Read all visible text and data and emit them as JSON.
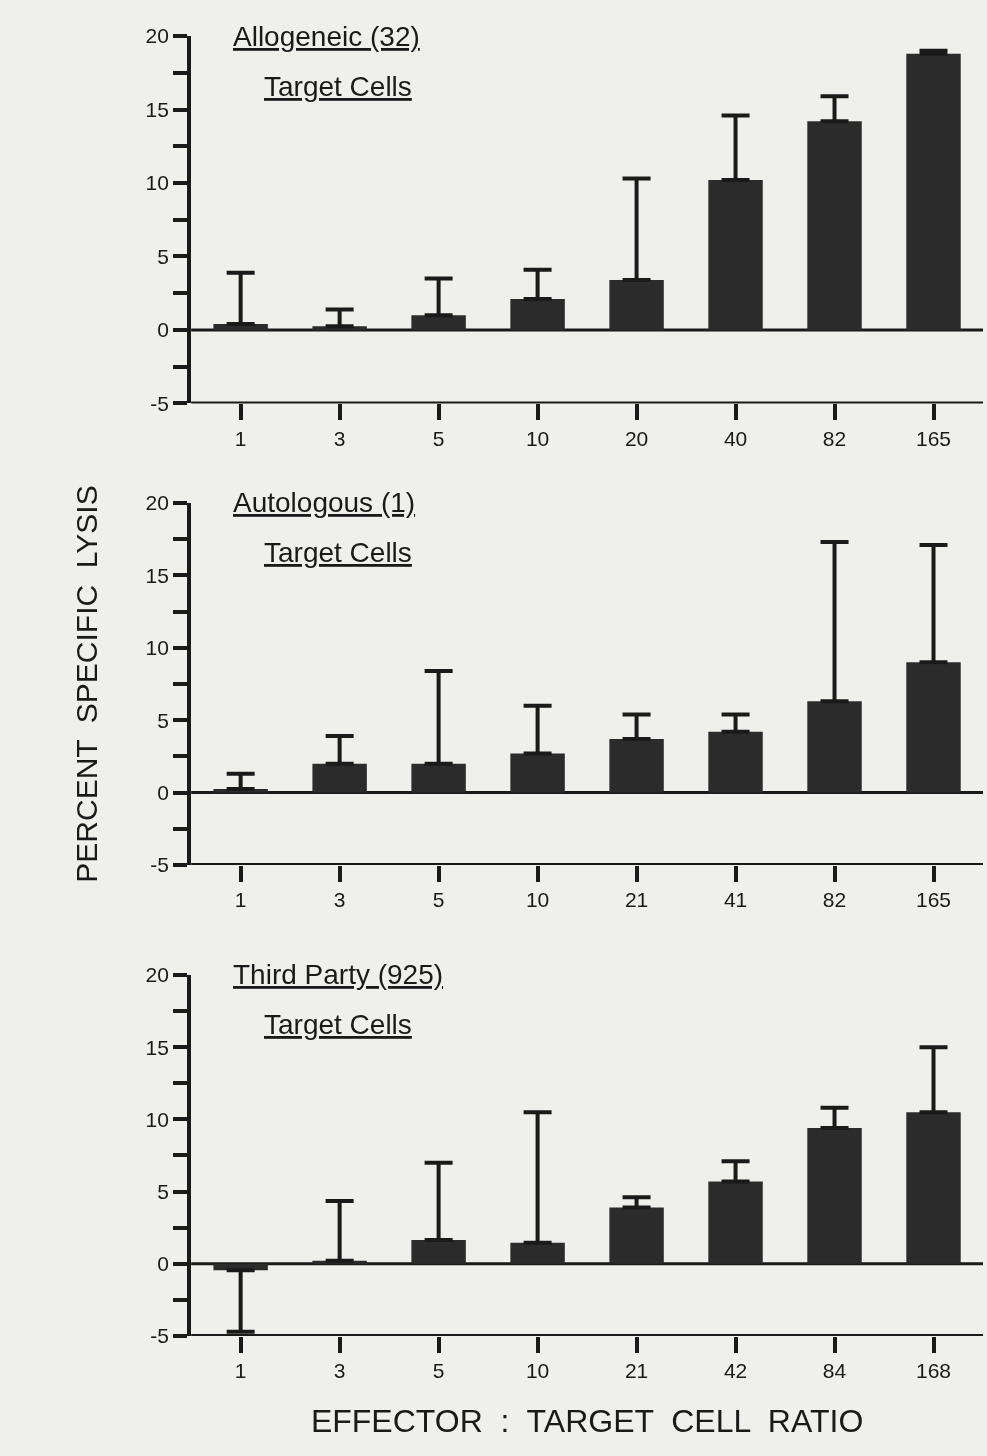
{
  "chart_data": [
    {
      "type": "bar",
      "title": "Allogeneic (32)",
      "subtitle": "Target Cells",
      "categories": [
        "1",
        "3",
        "5",
        "10",
        "20",
        "40",
        "82",
        "165"
      ],
      "values": [
        0.4,
        0.25,
        1.0,
        2.1,
        3.4,
        10.2,
        14.2,
        18.8
      ],
      "errors": [
        [
          0.4,
          3.9
        ],
        [
          0.25,
          1.4
        ],
        [
          1.0,
          3.5
        ],
        [
          2.1,
          4.1
        ],
        [
          3.4,
          10.3
        ],
        [
          10.2,
          14.6
        ],
        [
          14.2,
          15.9
        ],
        [
          18.8,
          19.0
        ]
      ],
      "ref_lines": [
        {
          "axis": "y",
          "value": 0,
          "color": "#1a1a1a"
        }
      ],
      "color": "#2b2b2b",
      "ylim": [
        -5,
        20
      ],
      "yticks": [
        -5,
        {
          "value": -2.5,
          "label": null
        },
        0,
        {
          "value": 2.5,
          "label": null
        },
        5,
        {
          "value": 7.5,
          "label": null
        },
        10,
        {
          "value": 12.5,
          "label": null
        },
        15,
        {
          "value": 17.5,
          "label": null
        },
        20
      ],
      "grid": false
    },
    {
      "type": "bar",
      "title": "Autologous (1)",
      "subtitle": "Target Cells",
      "ylabel": "PERCENT  SPECIFIC  LYSIS",
      "categories": [
        "1",
        "3",
        "5",
        "10",
        "21",
        "41",
        "82",
        "165"
      ],
      "values": [
        0.25,
        2.0,
        2.0,
        2.7,
        3.7,
        4.2,
        6.3,
        9.0
      ],
      "errors": [
        [
          0.25,
          1.3
        ],
        [
          2.0,
          3.9
        ],
        [
          2.0,
          8.4
        ],
        [
          2.7,
          6.0
        ],
        [
          3.7,
          5.4
        ],
        [
          4.2,
          5.4
        ],
        [
          6.3,
          17.3
        ],
        [
          9.0,
          17.1
        ]
      ],
      "ref_lines": [
        {
          "axis": "y",
          "value": 0,
          "color": "#1a1a1a"
        }
      ],
      "color": "#2b2b2b",
      "ylim": [
        -5,
        20
      ],
      "yticks": [
        -5,
        {
          "value": -2.5,
          "label": null
        },
        0,
        {
          "value": 2.5,
          "label": null
        },
        5,
        {
          "value": 7.5,
          "label": null
        },
        10,
        {
          "value": 12.5,
          "label": null
        },
        15,
        {
          "value": 17.5,
          "label": null
        },
        20
      ],
      "grid": false
    },
    {
      "type": "bar",
      "title": "Third Party (925)",
      "subtitle": "Target Cells",
      "xlabel": "EFFECTOR  :  TARGET  CELL  RATIO",
      "categories": [
        "1",
        "3",
        "5",
        "10",
        "21",
        "42",
        "84",
        "168"
      ],
      "values": [
        -0.45,
        0.2,
        1.65,
        1.45,
        3.9,
        5.7,
        9.4,
        10.5
      ],
      "errors": [
        [
          -4.7,
          -0.45
        ],
        [
          0.2,
          4.35
        ],
        [
          1.65,
          7.0
        ],
        [
          1.45,
          10.5
        ],
        [
          3.9,
          4.6
        ],
        [
          5.7,
          7.1
        ],
        [
          9.4,
          10.8
        ],
        [
          10.5,
          15.0
        ]
      ],
      "ref_lines": [
        {
          "axis": "y",
          "value": 0,
          "color": "#1a1a1a"
        }
      ],
      "color": "#2b2b2b",
      "ylim": [
        -5,
        20
      ],
      "yticks": [
        -5,
        {
          "value": -2.5,
          "label": null
        },
        0,
        {
          "value": 2.5,
          "label": null
        },
        5,
        {
          "value": 7.5,
          "label": null
        },
        10,
        {
          "value": 12.5,
          "label": null
        },
        15,
        {
          "value": 17.5,
          "label": null
        },
        20
      ],
      "grid": false
    }
  ]
}
